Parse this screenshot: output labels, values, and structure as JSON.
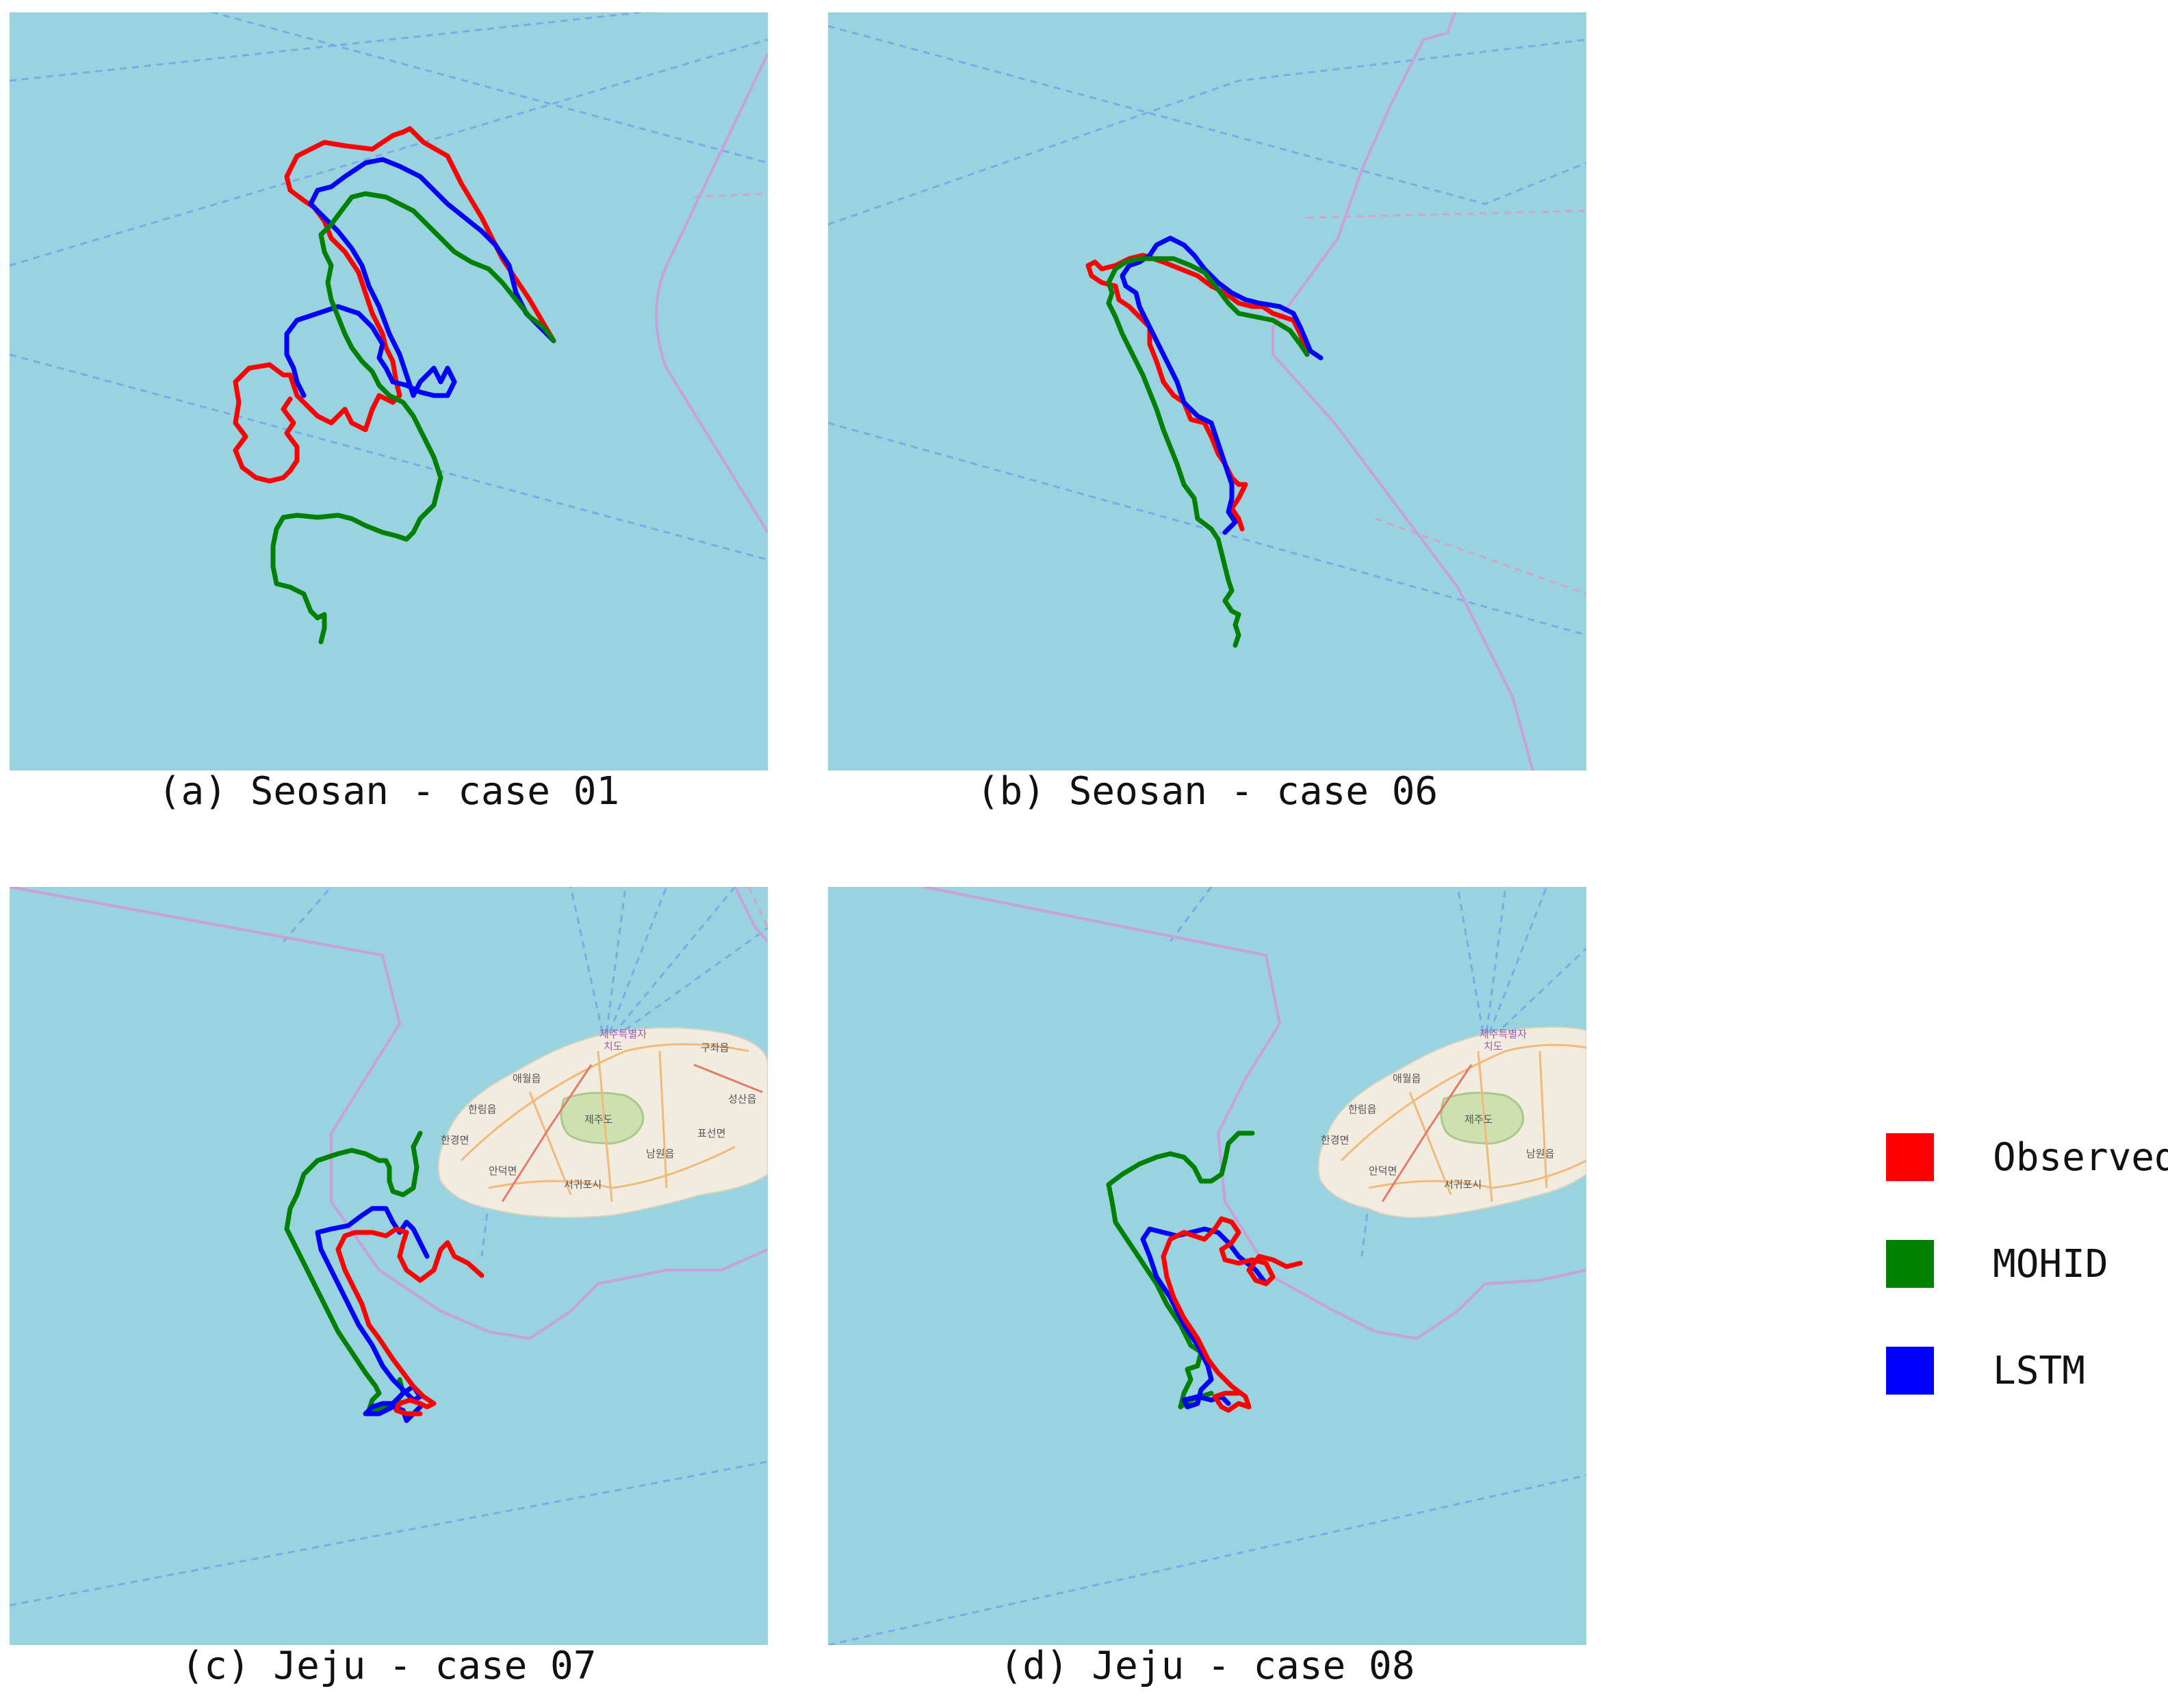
{
  "panels": [
    {
      "id": "a",
      "caption": "(a) Seosan - case 01"
    },
    {
      "id": "b",
      "caption": "(b) Seosan - case 06"
    },
    {
      "id": "c",
      "caption": "(c) Jeju - case 07"
    },
    {
      "id": "d",
      "caption": "(d) Jeju - case 08"
    }
  ],
  "map_labels": {
    "jeju_special": "제주특별자",
    "jeju_special2": "치도",
    "aewol": "애월읍",
    "hallim": "한림읍",
    "hangyeong": "한경면",
    "andeok": "안덕면",
    "jejudo": "제주도",
    "seogwipo": "서귀포시",
    "namwon": "남원읍",
    "pyoseon": "표선면",
    "seongsan": "성산읍",
    "gujwa": "구좌읍"
  },
  "legend": [
    {
      "label": "Observed",
      "color": "#ff0000"
    },
    {
      "label": "MOHID",
      "color": "#008000"
    },
    {
      "label": "LSTM",
      "color": "#0000ff"
    }
  ],
  "colors": {
    "sea": "#99d3df",
    "observed": "#ff0000",
    "mohid": "#008000",
    "lstm": "#0000ff"
  }
}
